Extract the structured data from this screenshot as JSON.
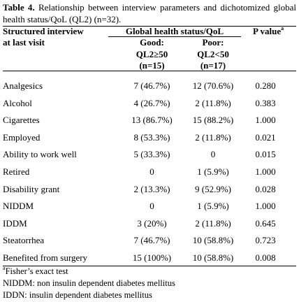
{
  "title": {
    "label": "Table 4.",
    "text": "Relationship between interview parameters and dichotomized global health status/QoL (QL2) (n=32)."
  },
  "header": {
    "first_column": [
      "Structured interview",
      "at last visit"
    ],
    "group": "Global health status/QoL",
    "p_value": "P value",
    "p_value_note": "a",
    "good": [
      "Good:",
      "QL2≥50",
      "(n=15)"
    ],
    "poor": [
      "Poor:",
      "QL2<50",
      "(n=17)"
    ]
  },
  "table": {
    "rows": [
      [
        "Analgesics",
        "7 (46.7%)",
        "12 (70.6%)",
        "0.280"
      ],
      [
        "Alcohol",
        "4 (26.7%)",
        "2 (11.8%)",
        "0.383"
      ],
      [
        "Cigarettes",
        "13 (86.7%)",
        "15 (88.2%)",
        "1.000"
      ],
      [
        "Employed",
        "8 (53.3%)",
        "2 (11.8%)",
        "0.021"
      ],
      [
        "Ability to work well",
        "5 (33.3%)",
        "0",
        "0.015"
      ],
      [
        "Retired",
        "0",
        "1 (5.9%)",
        "1.000"
      ],
      [
        "Disability grant",
        "2 (13.3%)",
        "9 (52.9%)",
        "0.028"
      ],
      [
        "NIDDM",
        "0",
        "1 (5.9%)",
        "1.000"
      ],
      [
        "IDDM",
        "3 (20%)",
        "2 (11.8%)",
        "0.645"
      ],
      [
        "Steatorrhea",
        "7 (46.7%)",
        "10 (58.8%)",
        "0.723"
      ],
      [
        "Benefited from surgery",
        "15 (100%)",
        "10 (58.8%)",
        "0.008"
      ]
    ]
  },
  "footnotes": [
    {
      "mark": "a",
      "text": "Fisher’s exact test"
    },
    {
      "text": "NIDDM: non insulin dependent diabetes mellitus"
    },
    {
      "text": "IDDN: insulin dependent diabetes mellitus"
    }
  ]
}
